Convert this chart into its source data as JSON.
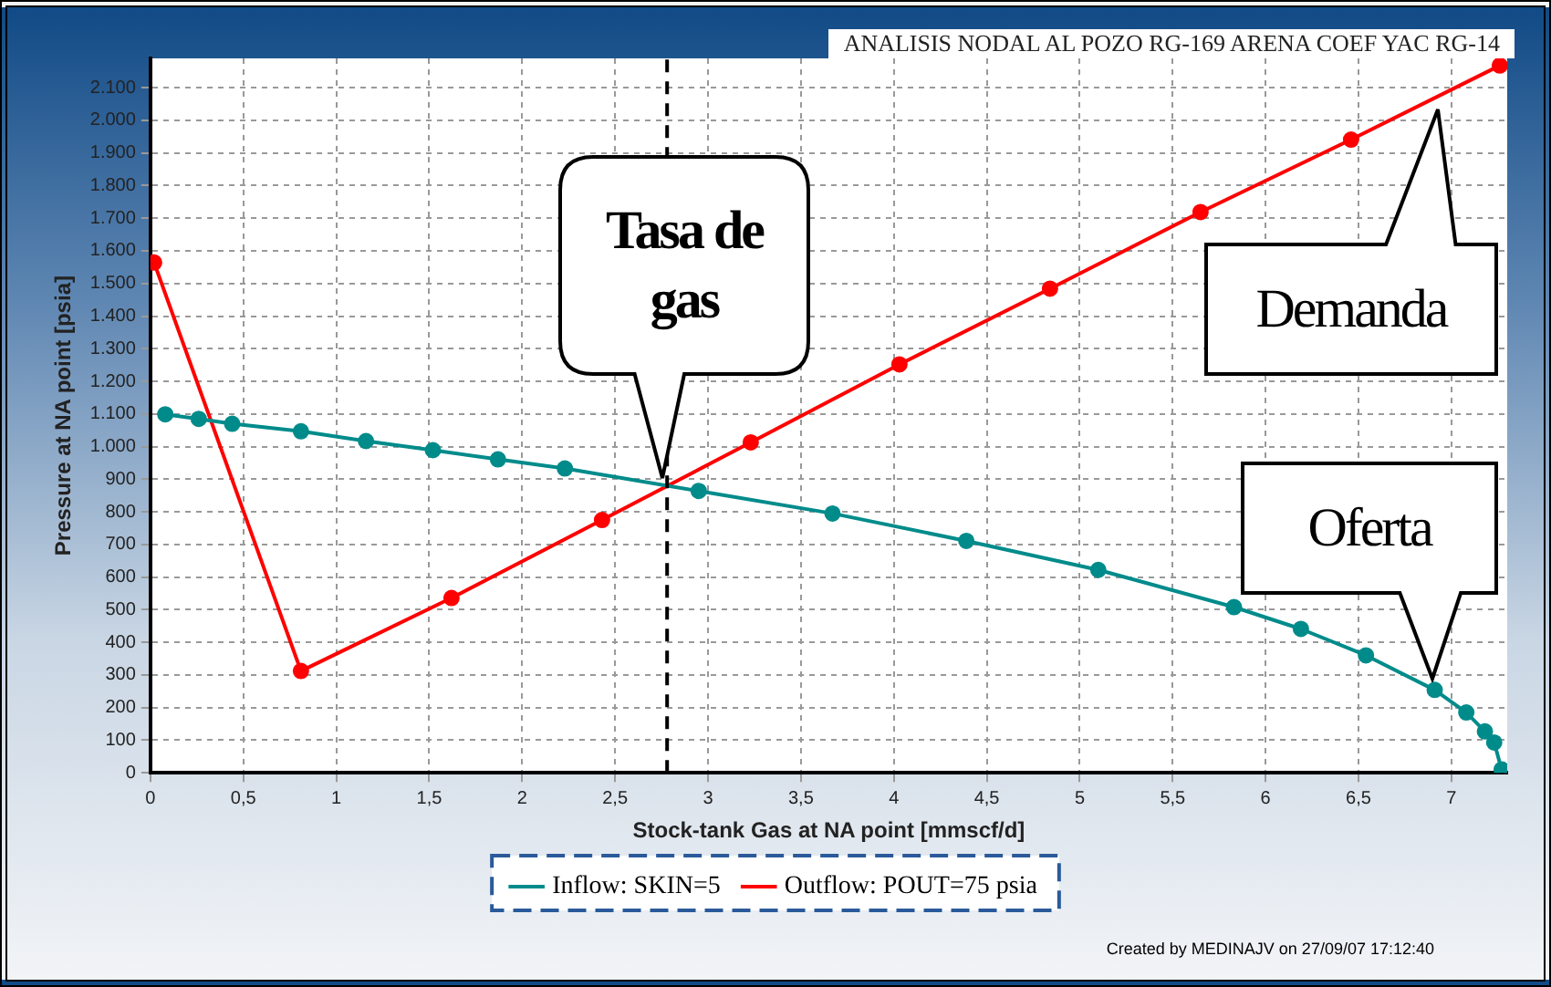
{
  "chart_data": {
    "type": "line",
    "title": "ANALISIS NODAL AL POZO RG-169 ARENA COEF YAC RG-14",
    "xlabel": "Stock-tank Gas at NA point [mmscf/d]",
    "ylabel": "Pressure at NA point [psia]",
    "xlim": [
      0,
      7.3
    ],
    "ylim": [
      0,
      2190
    ],
    "xticks": [
      0,
      {
        "value": 0.5,
        "label": "0,5"
      },
      1,
      {
        "value": 1.5,
        "label": "1,5"
      },
      2,
      {
        "value": 2.5,
        "label": "2,5"
      },
      3,
      {
        "value": 3.5,
        "label": "3,5"
      },
      4,
      {
        "value": 4.5,
        "label": "4,5"
      },
      5,
      {
        "value": 5.5,
        "label": "5,5"
      },
      6,
      {
        "value": 6.5,
        "label": "6,5"
      },
      7
    ],
    "yticks": [
      0,
      100,
      200,
      300,
      400,
      500,
      600,
      700,
      800,
      900,
      {
        "value": 1000,
        "label": "1.000"
      },
      {
        "value": 1100,
        "label": "1.100"
      },
      {
        "value": 1200,
        "label": "1.200"
      },
      {
        "value": 1300,
        "label": "1.300"
      },
      {
        "value": 1400,
        "label": "1.400"
      },
      {
        "value": 1500,
        "label": "1.500"
      },
      {
        "value": 1600,
        "label": "1.600"
      },
      {
        "value": 1700,
        "label": "1.700"
      },
      {
        "value": 1800,
        "label": "1.800"
      },
      {
        "value": 1900,
        "label": "1.900"
      },
      {
        "value": 2000,
        "label": "2.000"
      },
      {
        "value": 2100,
        "label": "2.100"
      }
    ],
    "grid": true,
    "legend": "bottom",
    "marker": "circle",
    "line_style": "solid",
    "series": [
      {
        "name": "Inflow: SKIN=5",
        "color": "#008b8b",
        "x": [
          0.08,
          0.26,
          0.44,
          0.81,
          1.16,
          1.52,
          1.87,
          2.23,
          2.95,
          3.67,
          4.39,
          5.1,
          5.83,
          6.19,
          6.54,
          6.91,
          7.08,
          7.18,
          7.23,
          7.27
        ],
        "values": [
          1099,
          1085,
          1070,
          1047,
          1017,
          989,
          961,
          933,
          864,
          795,
          711,
          622,
          508,
          441,
          360,
          254,
          185,
          127,
          93,
          10
        ]
      },
      {
        "name": "Outflow: POUT=75 psia",
        "color": "#ff0000",
        "x": [
          0.02,
          0.81,
          1.62,
          2.43,
          3.23,
          4.03,
          4.84,
          5.65,
          6.46,
          7.26
        ],
        "values": [
          1564,
          312,
          536,
          775,
          1013,
          1252,
          1484,
          1719,
          1941,
          2168
        ]
      }
    ],
    "ref_lines": [
      {
        "axis": "x",
        "value": 2.78,
        "color": "#000000",
        "line_style": "dashed"
      }
    ],
    "annotations": [
      "Tasa de gas",
      "Demanda",
      "Oferta",
      "Created by MEDINAJV on 27/09/07 17:12:40"
    ]
  }
}
